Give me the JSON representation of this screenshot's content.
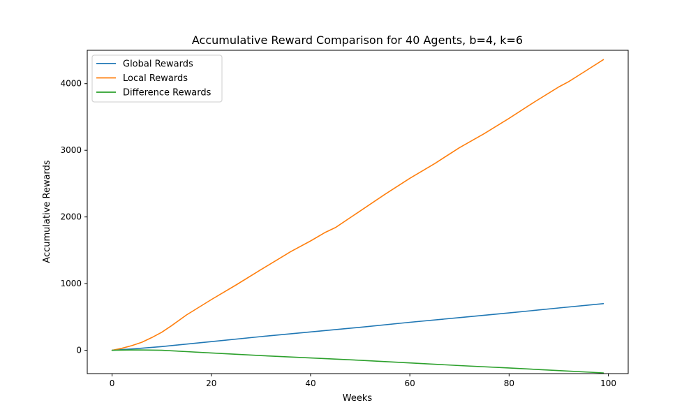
{
  "chart_data": {
    "type": "line",
    "title": "Accumulative Reward Comparison for 40 Agents, b=4, k=6",
    "xlabel": "Weeks",
    "ylabel": "Accumulative Rewards",
    "xlim": [
      -5,
      104
    ],
    "ylim": [
      -350,
      4500
    ],
    "xticks": [
      0,
      20,
      40,
      60,
      80,
      100
    ],
    "yticks": [
      0,
      1000,
      2000,
      3000,
      4000
    ],
    "grid": false,
    "legend": "top-left",
    "series": [
      {
        "name": "Global Rewards",
        "color": "#1f77b4",
        "x": [
          0,
          5,
          10,
          20,
          30,
          40,
          50,
          60,
          70,
          80,
          90,
          99
        ],
        "y": [
          0,
          25,
          55,
          130,
          205,
          275,
          345,
          420,
          490,
          560,
          635,
          700
        ]
      },
      {
        "name": "Local Rewards",
        "color": "#ff7f0e",
        "x": [
          0,
          2,
          4,
          6,
          8,
          10,
          12,
          15,
          20,
          25,
          30,
          34,
          36,
          40,
          43,
          45,
          50,
          55,
          60,
          65,
          70,
          75,
          80,
          85,
          90,
          92,
          95,
          99
        ],
        "y": [
          0,
          30,
          70,
          120,
          190,
          270,
          370,
          530,
          760,
          980,
          1210,
          1390,
          1480,
          1640,
          1770,
          1840,
          2090,
          2340,
          2580,
          2800,
          3040,
          3250,
          3480,
          3720,
          3950,
          4030,
          4170,
          4360
        ]
      },
      {
        "name": "Difference Rewards",
        "color": "#2ca02c",
        "x": [
          0,
          5,
          10,
          15,
          20,
          30,
          40,
          50,
          60,
          70,
          80,
          90,
          99
        ],
        "y": [
          0,
          5,
          0,
          -20,
          -40,
          -80,
          -115,
          -150,
          -190,
          -230,
          -265,
          -305,
          -340
        ]
      }
    ]
  }
}
